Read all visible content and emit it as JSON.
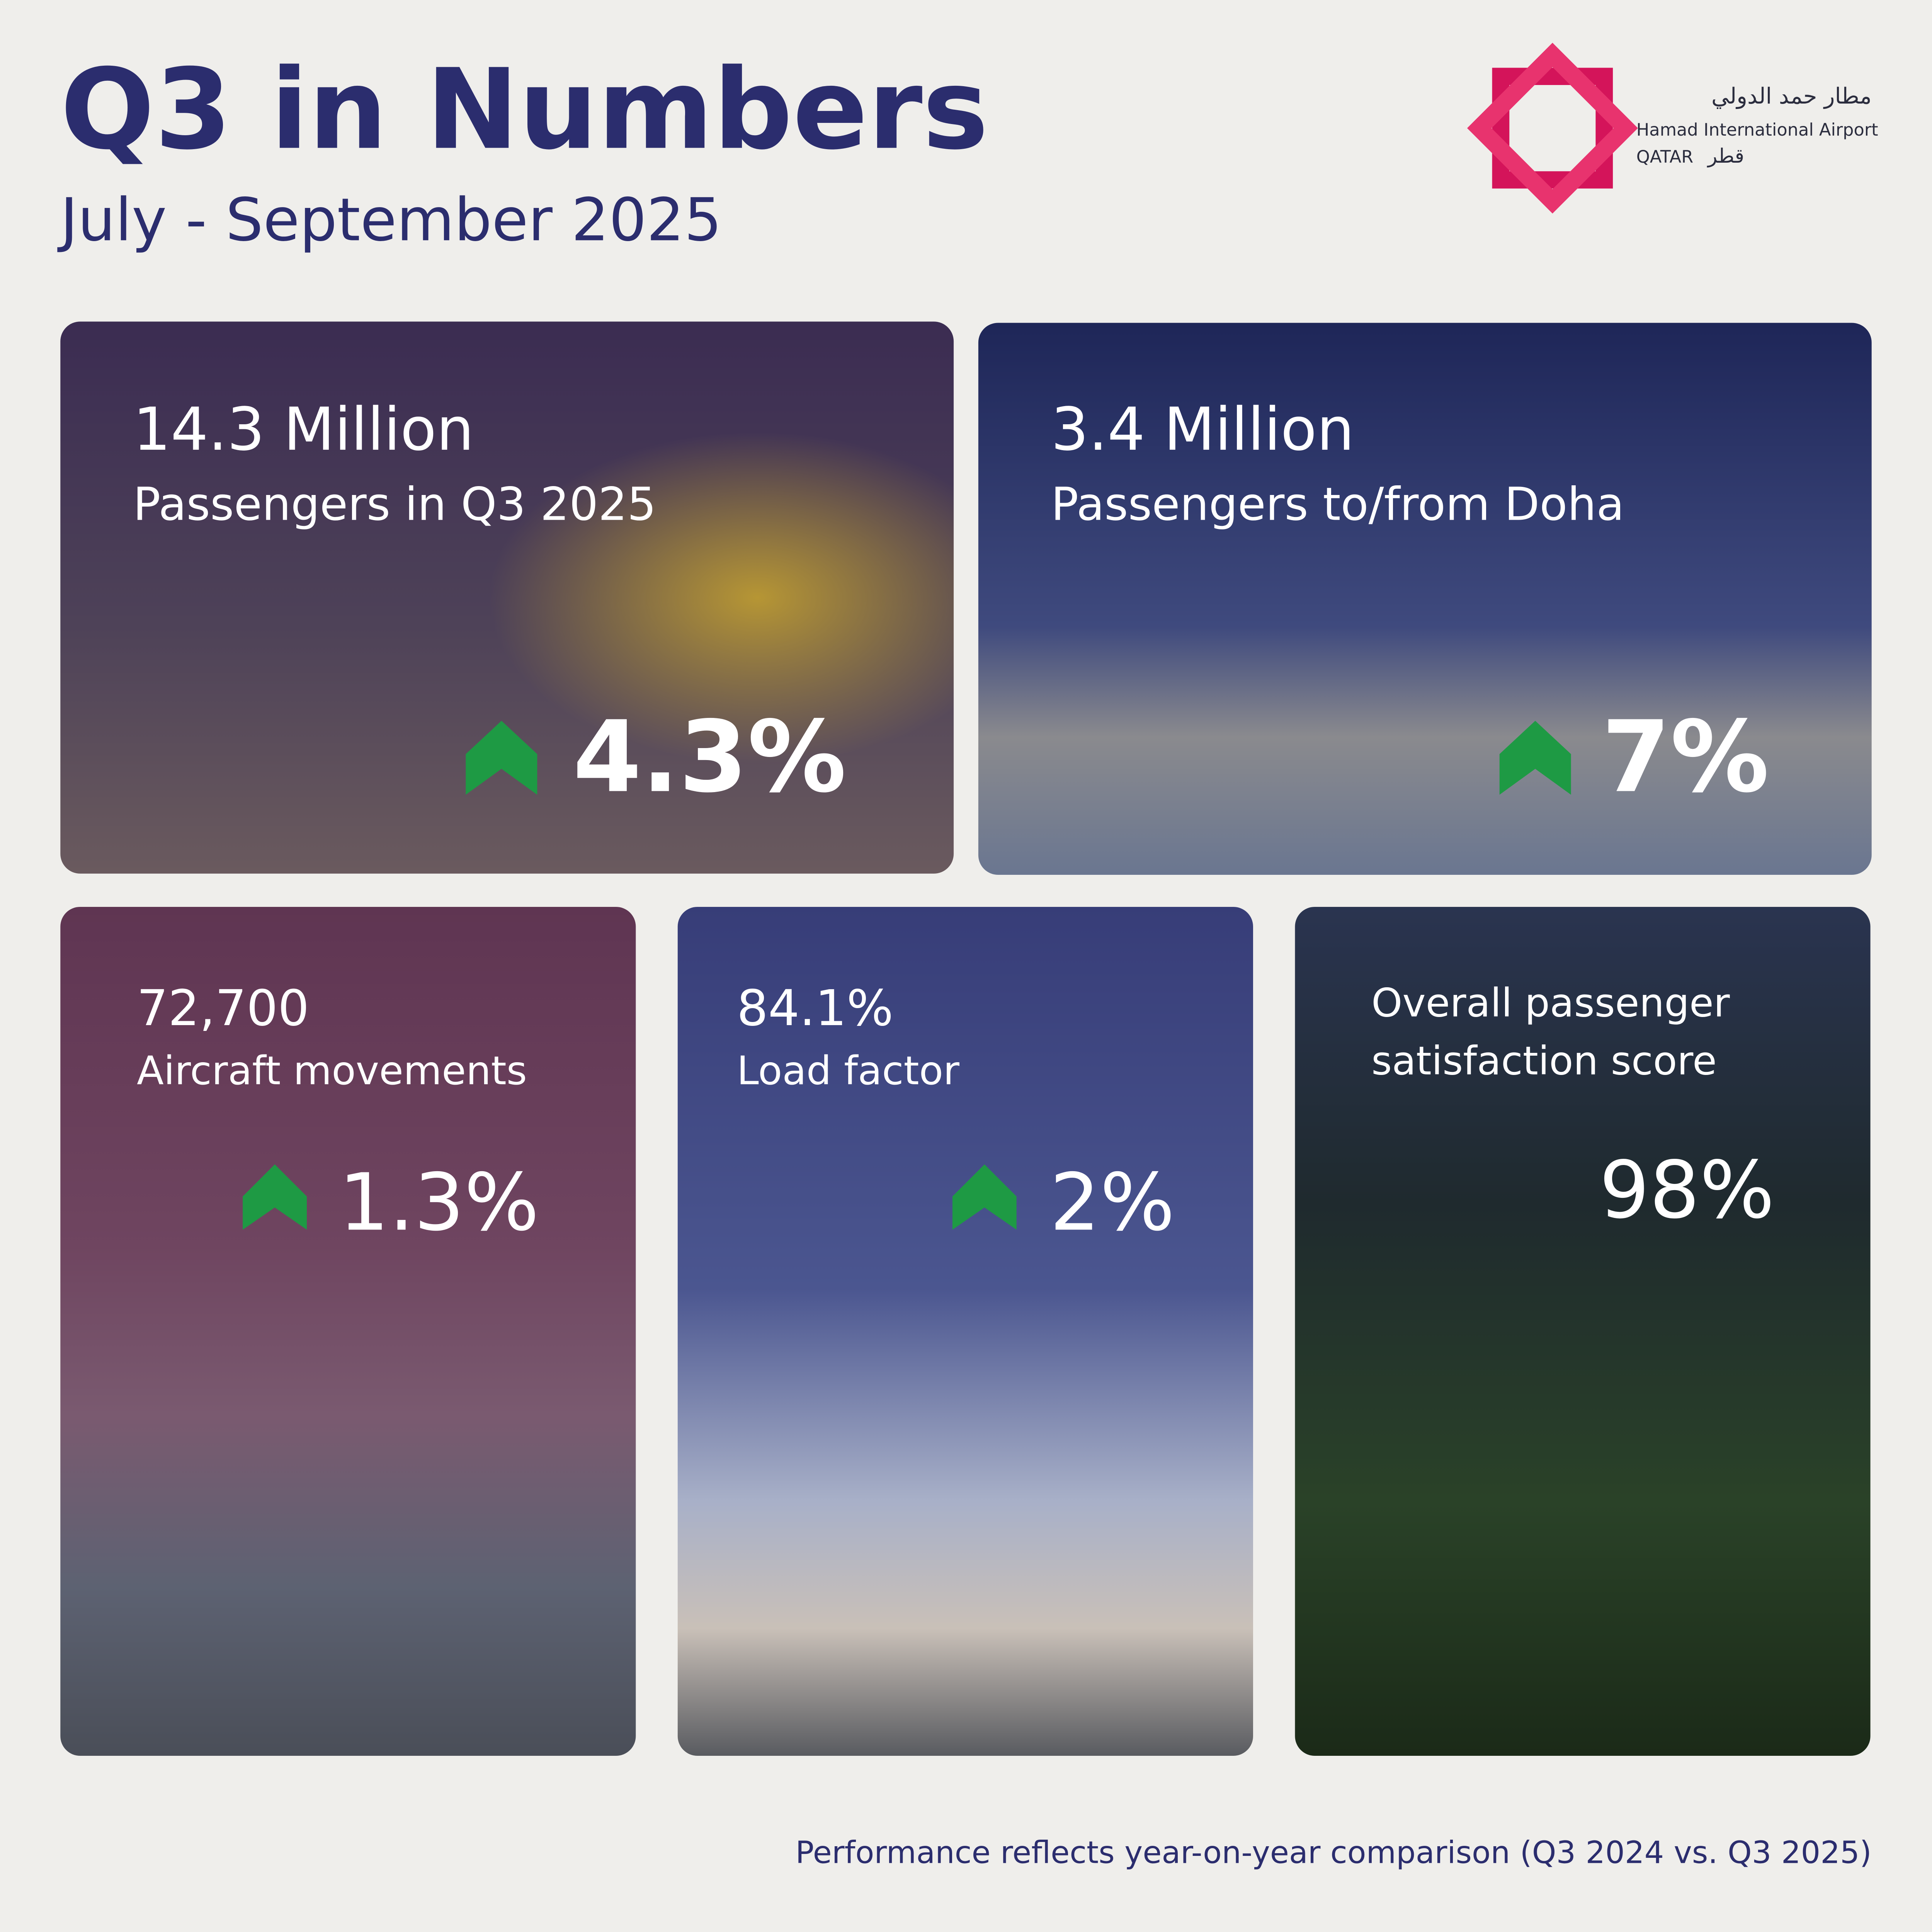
{
  "header": {
    "title": "Q3 in Numbers",
    "subtitle": "July - September 2025"
  },
  "logo": {
    "arabic": "مطار حمد الدولي",
    "name": "Hamad International Airport",
    "country": "QATAR",
    "country_arabic": "قطر"
  },
  "cards": [
    {
      "value": "14.3 Million",
      "label": "Passengers in Q3 2025",
      "change": "4.3%"
    },
    {
      "value": "3.4 Million",
      "label": "Passengers to/from Doha",
      "change": "7%"
    },
    {
      "value": "72,700",
      "label": "Aircraft movements",
      "change": "1.3%"
    },
    {
      "value": "84.1%",
      "label": "Load factor",
      "change": "2%"
    },
    {
      "label": [
        "Overall passenger",
        "satisfaction score"
      ],
      "score": "98%"
    }
  ],
  "footer": "Performance reflects year-on-year comparison (Q3 2024 vs. Q3 2025)"
}
